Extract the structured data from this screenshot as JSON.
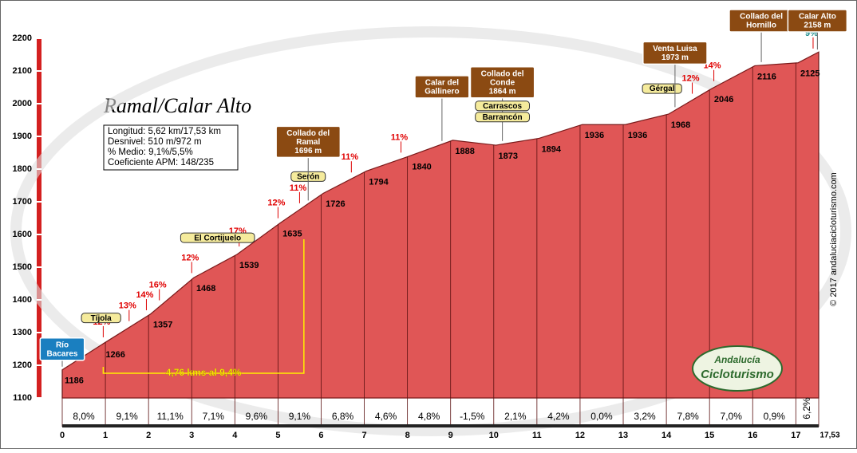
{
  "chart_data": {
    "type": "area",
    "title": "Ramal/Calar Alto",
    "info": [
      "Longitud: 5,62 km/17,53 km",
      "Desnivel: 510 m/972 m",
      "% Medio: 9,1%/5,5%",
      "Coeficiente APM: 148/235"
    ],
    "color": "#e05656",
    "x": [
      0,
      0.95,
      2.05,
      3.05,
      4.05,
      5.05,
      6.05,
      7.05,
      8.05,
      9.05,
      10.05,
      11.05,
      12.05,
      13.05,
      14.05,
      15.05,
      16.05,
      17.05,
      17.53
    ],
    "series": [
      {
        "name": "Altitud",
        "color": "#e05656",
        "values": [
          1186,
          1266,
          1357,
          1468,
          1539,
          1635,
          1726,
          1794,
          1840,
          1888,
          1873,
          1894,
          1936,
          1936,
          1968,
          2046,
          2116,
          2125,
          2158
        ]
      }
    ],
    "xlim": [
      0,
      17.53
    ],
    "xticks": [
      0,
      1,
      2,
      3,
      4,
      5,
      6,
      7,
      8,
      9,
      10,
      11,
      12,
      13,
      14,
      15,
      16,
      17,
      {
        "value": 17.53,
        "label": "17,53"
      }
    ],
    "ylim": [
      1100,
      2200
    ],
    "yticks": [
      1100,
      1200,
      1300,
      1400,
      1500,
      1600,
      1700,
      1800,
      1900,
      2000,
      2100,
      2200
    ],
    "segment_gradients": {
      "values": [
        8.0,
        9.1,
        11.1,
        7.1,
        9.6,
        9.1,
        6.8,
        4.6,
        4.8,
        -1.5,
        2.1,
        4.2,
        0.0,
        3.2,
        7.8,
        7.0,
        0.9,
        6.2
      ],
      "value_labels": [
        "8,0%",
        "9,1%",
        "11,1%",
        "7,1%",
        "9,6%",
        "9,1%",
        "6,8%",
        "4,6%",
        "4,8%",
        "-1,5%",
        "2,1%",
        "4,2%",
        "0,0%",
        "3,2%",
        "7,8%",
        "7,0%",
        "0,9%",
        "6,2%"
      ]
    },
    "max_gradients": {
      "km": [
        0.95,
        1.55,
        1.95,
        2.25,
        3.0,
        4.1,
        5.0,
        5.5,
        6.7,
        7.85,
        14.6,
        15.1,
        17.4
      ],
      "values": [
        12,
        13,
        14,
        16,
        12,
        17,
        12,
        11,
        11,
        11,
        12,
        14,
        9
      ],
      "value_labels": [
        "12%",
        "13%",
        "14%",
        "16%",
        "12%",
        "17%",
        "12%",
        "11%",
        "11%",
        "11%",
        "12%",
        "14%",
        "9%"
      ]
    },
    "climb_note": {
      "text": "4,76 kms al 9,4%",
      "from_km": 0.95,
      "to_km": 5.6
    },
    "places": [
      {
        "lines": [
          "Río",
          "Bacares"
        ],
        "km": 0,
        "style": "blue"
      },
      {
        "lines": [
          "Tíjola"
        ],
        "km": 0.9,
        "style": "sign"
      },
      {
        "lines": [
          "El Cortijuelo"
        ],
        "km": 3.6,
        "style": "sign"
      },
      {
        "lines": [
          "Serón"
        ],
        "km": 5.7,
        "style": "sign"
      },
      {
        "lines": [
          "Collado del",
          "Ramal",
          "1696 m"
        ],
        "km": 5.7,
        "style": "brown"
      },
      {
        "lines": [
          "Calar del",
          "Gallinero"
        ],
        "km": 8.8,
        "style": "brown"
      },
      {
        "lines": [
          "Collado del",
          "Conde",
          "1864 m"
        ],
        "km": 10.2,
        "style": "brown"
      },
      {
        "lines": [
          "Barrancón"
        ],
        "km": 10.2,
        "style": "sign"
      },
      {
        "lines": [
          "Carrascos"
        ],
        "km": 10.2,
        "style": "sign"
      },
      {
        "lines": [
          "Gérgal"
        ],
        "km": 13.9,
        "style": "sign"
      },
      {
        "lines": [
          "Venta Luisa",
          "1973 m"
        ],
        "km": 14.2,
        "style": "brown"
      },
      {
        "lines": [
          "Collado del",
          "Hornillo"
        ],
        "km": 16.2,
        "style": "brown"
      },
      {
        "lines": [
          "Calar Alto",
          "2158 m"
        ],
        "km": 17.5,
        "style": "brown"
      }
    ],
    "credit": "© 2017 andaluciacicloturismo.com",
    "logo": [
      "Andalucía",
      "Cicloturismo"
    ]
  }
}
